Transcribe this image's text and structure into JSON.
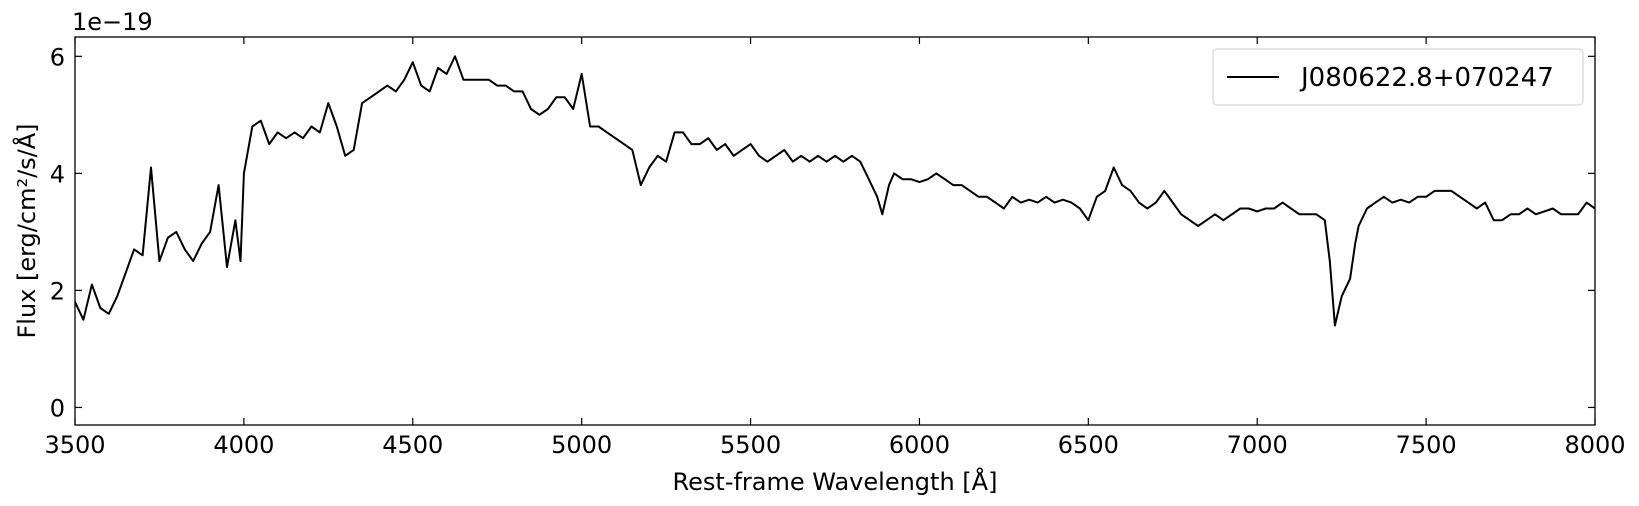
{
  "chart_data": {
    "type": "line",
    "x_label": "Rest-frame Wavelength [Å]",
    "y_label": "Flux [erg/cm²/s/Å]",
    "y_offset_label": "1e−19",
    "x": [
      3500,
      3525,
      3550,
      3575,
      3600,
      3625,
      3650,
      3675,
      3700,
      3725,
      3750,
      3775,
      3800,
      3825,
      3850,
      3875,
      3900,
      3925,
      3950,
      3975,
      3990,
      4000,
      4025,
      4050,
      4075,
      4100,
      4125,
      4150,
      4175,
      4200,
      4225,
      4250,
      4275,
      4300,
      4325,
      4350,
      4375,
      4400,
      4425,
      4450,
      4475,
      4500,
      4525,
      4550,
      4575,
      4600,
      4625,
      4650,
      4675,
      4700,
      4725,
      4750,
      4775,
      4800,
      4825,
      4850,
      4875,
      4900,
      4925,
      4950,
      4975,
      5000,
      5025,
      5050,
      5075,
      5100,
      5125,
      5150,
      5175,
      5200,
      5225,
      5250,
      5275,
      5300,
      5325,
      5350,
      5375,
      5400,
      5425,
      5450,
      5475,
      5500,
      5525,
      5550,
      5575,
      5600,
      5625,
      5650,
      5675,
      5700,
      5725,
      5750,
      5775,
      5800,
      5825,
      5850,
      5875,
      5890,
      5910,
      5925,
      5950,
      5975,
      6000,
      6025,
      6050,
      6075,
      6100,
      6125,
      6150,
      6175,
      6200,
      6225,
      6250,
      6275,
      6300,
      6325,
      6350,
      6375,
      6400,
      6425,
      6450,
      6475,
      6500,
      6525,
      6550,
      6575,
      6600,
      6625,
      6650,
      6675,
      6700,
      6725,
      6750,
      6775,
      6800,
      6825,
      6850,
      6875,
      6900,
      6925,
      6950,
      6975,
      7000,
      7025,
      7050,
      7075,
      7100,
      7125,
      7150,
      7175,
      7200,
      7215,
      7230,
      7250,
      7275,
      7290,
      7300,
      7325,
      7350,
      7375,
      7400,
      7425,
      7450,
      7475,
      7500,
      7525,
      7550,
      7575,
      7600,
      7625,
      7650,
      7675,
      7700,
      7725,
      7750,
      7775,
      7800,
      7825,
      7850,
      7875,
      7900,
      7925,
      7950,
      7975,
      8000
    ],
    "series": [
      {
        "name": "J080622.8+070247",
        "color": "#000000",
        "values": [
          1.8,
          1.5,
          2.1,
          1.7,
          1.6,
          1.9,
          2.3,
          2.7,
          2.6,
          4.1,
          2.5,
          2.9,
          3.0,
          2.7,
          2.5,
          2.8,
          3.0,
          3.8,
          2.4,
          3.2,
          2.5,
          4.0,
          4.8,
          4.9,
          4.5,
          4.7,
          4.6,
          4.7,
          4.6,
          4.8,
          4.7,
          5.2,
          4.8,
          4.3,
          4.4,
          5.2,
          5.3,
          5.4,
          5.5,
          5.4,
          5.6,
          5.9,
          5.5,
          5.4,
          5.8,
          5.7,
          6.0,
          5.6,
          5.6,
          5.6,
          5.6,
          5.5,
          5.5,
          5.4,
          5.4,
          5.1,
          5.0,
          5.1,
          5.3,
          5.3,
          5.1,
          5.7,
          4.8,
          4.8,
          4.7,
          4.6,
          4.5,
          4.4,
          3.8,
          4.1,
          4.3,
          4.2,
          4.7,
          4.7,
          4.5,
          4.5,
          4.6,
          4.4,
          4.5,
          4.3,
          4.4,
          4.5,
          4.3,
          4.2,
          4.3,
          4.4,
          4.2,
          4.3,
          4.2,
          4.3,
          4.2,
          4.3,
          4.2,
          4.3,
          4.2,
          3.9,
          3.6,
          3.3,
          3.8,
          4.0,
          3.9,
          3.9,
          3.85,
          3.9,
          4.0,
          3.9,
          3.8,
          3.8,
          3.7,
          3.6,
          3.6,
          3.5,
          3.4,
          3.6,
          3.5,
          3.55,
          3.5,
          3.6,
          3.5,
          3.55,
          3.5,
          3.4,
          3.2,
          3.6,
          3.7,
          4.1,
          3.8,
          3.7,
          3.5,
          3.4,
          3.5,
          3.7,
          3.5,
          3.3,
          3.2,
          3.1,
          3.2,
          3.3,
          3.2,
          3.3,
          3.4,
          3.4,
          3.35,
          3.4,
          3.4,
          3.5,
          3.4,
          3.3,
          3.3,
          3.3,
          3.2,
          2.5,
          1.4,
          1.9,
          2.2,
          2.8,
          3.1,
          3.4,
          3.5,
          3.6,
          3.5,
          3.55,
          3.5,
          3.6,
          3.6,
          3.7,
          3.7,
          3.7,
          3.6,
          3.5,
          3.4,
          3.5,
          3.2,
          3.2,
          3.3,
          3.3,
          3.4,
          3.3,
          3.35,
          3.4,
          3.3,
          3.3,
          3.3,
          3.5,
          3.4
        ]
      }
    ],
    "xlim": [
      3500,
      8000
    ],
    "xticks": [
      3500,
      4000,
      4500,
      5000,
      5500,
      6000,
      6500,
      7000,
      7500,
      8000
    ],
    "ylim": [
      -0.3,
      6.33
    ],
    "yticks": [
      0,
      2,
      4,
      6
    ],
    "grid": false,
    "legend": "upper right"
  }
}
